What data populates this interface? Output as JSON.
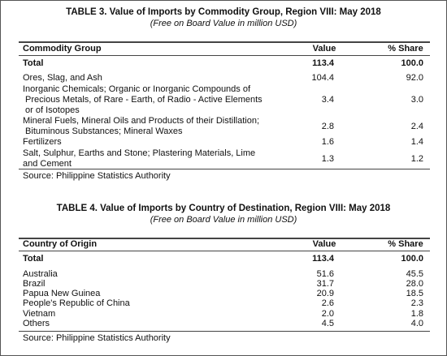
{
  "tables": [
    {
      "title": "TABLE 3. Value of Imports by Commodity Group, Region VIII: May 2018",
      "subtitle": "(Free on Board Value in million USD)",
      "header": [
        "Commodity Group",
        "Value",
        "% Share"
      ],
      "total": [
        "Total",
        "113.4",
        "100.0"
      ],
      "rows": [
        {
          "label": [
            "Ores, Slag, and Ash"
          ],
          "value": "104.4",
          "share": "92.0"
        },
        {
          "label": [
            "Inorganic Chemicals; Organic or Inorganic Compounds of",
            " Precious Metals, of Rare - Earth, of Radio - Active Elements",
            " or of Isotopes"
          ],
          "value": "3.4",
          "share": "3.0"
        },
        {
          "label": [
            "Mineral Fuels, Mineral Oils and Products of their Distillation;",
            " Bituminous Substances; Mineral Waxes"
          ],
          "value": "2.8",
          "share": "2.4"
        },
        {
          "label": [
            "Fertilizers"
          ],
          "value": "1.6",
          "share": "1.4"
        },
        {
          "label": [
            "Salt, Sulphur, Earths and Stone; Plastering Materials, Lime",
            "and Cement"
          ],
          "value": "1.3",
          "share": "1.2"
        }
      ],
      "source": "Source: Philippine Statistics Authority"
    },
    {
      "title": "TABLE 4. Value of Imports by Country of Destination, Region VIII: May 2018",
      "subtitle": "(Free on Board Value in million USD)",
      "header": [
        "Country of Origin",
        "Value",
        "% Share"
      ],
      "total": [
        "Total",
        "113.4",
        "100.0"
      ],
      "rows": [
        {
          "label": [
            "Australia"
          ],
          "value": "51.6",
          "share": "45.5"
        },
        {
          "label": [
            "Brazil"
          ],
          "value": "31.7",
          "share": "28.0"
        },
        {
          "label": [
            "Papua New Guinea"
          ],
          "value": "20.9",
          "share": "18.5"
        },
        {
          "label": [
            "People's Republic of China"
          ],
          "value": "2.6",
          "share": "2.3"
        },
        {
          "label": [
            "Vietnam"
          ],
          "value": "2.0",
          "share": "1.8"
        },
        {
          "label": [
            "Others"
          ],
          "value": "4.5",
          "share": "4.0"
        }
      ],
      "source": "Source: Philippine Statistics Authority"
    }
  ]
}
